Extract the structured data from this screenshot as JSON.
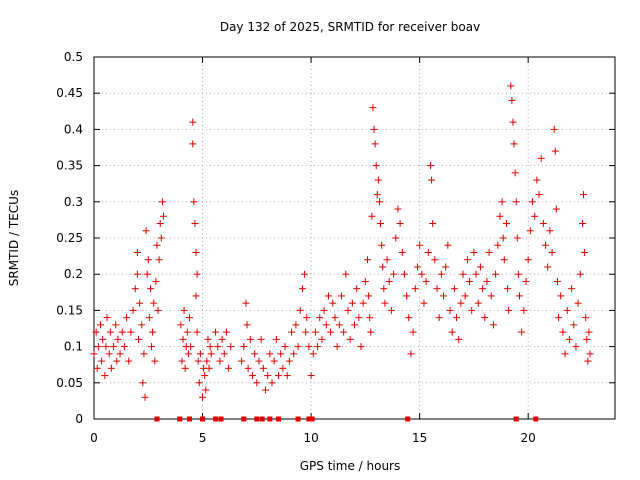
{
  "chart_data": {
    "type": "scatter",
    "title": "Day 132 of 2025, SRMTID for receiver boav",
    "xlabel": "GPS time / hours",
    "ylabel": "SRMTID / TECUs",
    "xlim": [
      0,
      24
    ],
    "ylim": [
      0,
      0.5
    ],
    "xticks": [
      0,
      5,
      10,
      15,
      20
    ],
    "yticks": [
      0,
      0.05,
      0.1,
      0.15,
      0.2,
      0.25,
      0.3,
      0.35,
      0.4,
      0.45,
      0.5
    ],
    "xtick_labels": [
      "0",
      "5",
      "10",
      "15",
      "20"
    ],
    "ytick_labels": [
      "0",
      "0.05",
      "0.1",
      "0.15",
      "0.2",
      "0.25",
      "0.3",
      "0.35",
      "0.4",
      "0.45",
      "0.5"
    ],
    "grid": true,
    "marker": "+",
    "color": "#e00000",
    "series": [
      {
        "name": "SRMTID",
        "points": [
          [
            0.0,
            0.09
          ],
          [
            0.1,
            0.12
          ],
          [
            0.15,
            0.07
          ],
          [
            0.2,
            0.1
          ],
          [
            0.3,
            0.13
          ],
          [
            0.35,
            0.08
          ],
          [
            0.4,
            0.11
          ],
          [
            0.5,
            0.06
          ],
          [
            0.55,
            0.1
          ],
          [
            0.6,
            0.14
          ],
          [
            0.7,
            0.09
          ],
          [
            0.75,
            0.12
          ],
          [
            0.8,
            0.07
          ],
          [
            0.9,
            0.1
          ],
          [
            1.0,
            0.13
          ],
          [
            1.05,
            0.08
          ],
          [
            1.1,
            0.11
          ],
          [
            1.2,
            0.09
          ],
          [
            1.3,
            0.12
          ],
          [
            1.4,
            0.1
          ],
          [
            1.5,
            0.14
          ],
          [
            1.6,
            0.08
          ],
          [
            1.7,
            0.12
          ],
          [
            1.8,
            0.15
          ],
          [
            1.9,
            0.18
          ],
          [
            2.0,
            0.2
          ],
          [
            2.0,
            0.23
          ],
          [
            2.05,
            0.11
          ],
          [
            2.1,
            0.16
          ],
          [
            2.2,
            0.13
          ],
          [
            2.25,
            0.05
          ],
          [
            2.3,
            0.09
          ],
          [
            2.35,
            0.03
          ],
          [
            2.4,
            0.26
          ],
          [
            2.45,
            0.2
          ],
          [
            2.5,
            0.22
          ],
          [
            2.55,
            0.14
          ],
          [
            2.6,
            0.18
          ],
          [
            2.65,
            0.1
          ],
          [
            2.7,
            0.12
          ],
          [
            2.75,
            0.16
          ],
          [
            2.8,
            0.08
          ],
          [
            2.85,
            0.19
          ],
          [
            2.9,
            0.24
          ],
          [
            2.95,
            0.15
          ],
          [
            3.0,
            0.22
          ],
          [
            3.05,
            0.27
          ],
          [
            3.1,
            0.25
          ],
          [
            3.15,
            0.3
          ],
          [
            3.2,
            0.28
          ],
          [
            4.0,
            0.13
          ],
          [
            4.05,
            0.08
          ],
          [
            4.1,
            0.11
          ],
          [
            4.15,
            0.15
          ],
          [
            4.2,
            0.07
          ],
          [
            4.25,
            0.1
          ],
          [
            4.3,
            0.12
          ],
          [
            4.35,
            0.09
          ],
          [
            4.4,
            0.14
          ],
          [
            4.45,
            0.1
          ],
          [
            4.55,
            0.41
          ],
          [
            4.55,
            0.38
          ],
          [
            4.6,
            0.3
          ],
          [
            4.65,
            0.27
          ],
          [
            4.7,
            0.23
          ],
          [
            4.75,
            0.2
          ],
          [
            4.7,
            0.17
          ],
          [
            4.75,
            0.12
          ],
          [
            4.8,
            0.08
          ],
          [
            4.85,
            0.05
          ],
          [
            4.9,
            0.09
          ],
          [
            5.0,
            0.03
          ],
          [
            5.05,
            0.07
          ],
          [
            5.1,
            0.06
          ],
          [
            5.15,
            0.04
          ],
          [
            5.2,
            0.08
          ],
          [
            5.25,
            0.11
          ],
          [
            5.3,
            0.07
          ],
          [
            5.35,
            0.1
          ],
          [
            5.4,
            0.09
          ],
          [
            5.6,
            0.12
          ],
          [
            5.7,
            0.1
          ],
          [
            5.8,
            0.08
          ],
          [
            5.9,
            0.11
          ],
          [
            6.0,
            0.09
          ],
          [
            6.1,
            0.12
          ],
          [
            6.2,
            0.07
          ],
          [
            6.3,
            0.1
          ],
          [
            6.8,
            0.08
          ],
          [
            6.9,
            0.1
          ],
          [
            7.0,
            0.16
          ],
          [
            7.05,
            0.13
          ],
          [
            7.1,
            0.07
          ],
          [
            7.2,
            0.11
          ],
          [
            7.3,
            0.06
          ],
          [
            7.4,
            0.09
          ],
          [
            7.5,
            0.05
          ],
          [
            7.6,
            0.08
          ],
          [
            7.7,
            0.11
          ],
          [
            7.8,
            0.07
          ],
          [
            7.9,
            0.04
          ],
          [
            8.0,
            0.06
          ],
          [
            8.1,
            0.09
          ],
          [
            8.2,
            0.05
          ],
          [
            8.3,
            0.08
          ],
          [
            8.4,
            0.11
          ],
          [
            8.5,
            0.06
          ],
          [
            8.6,
            0.09
          ],
          [
            8.7,
            0.07
          ],
          [
            8.8,
            0.1
          ],
          [
            8.9,
            0.06
          ],
          [
            9.0,
            0.08
          ],
          [
            9.1,
            0.12
          ],
          [
            9.2,
            0.09
          ],
          [
            9.3,
            0.13
          ],
          [
            9.4,
            0.1
          ],
          [
            9.5,
            0.15
          ],
          [
            9.6,
            0.18
          ],
          [
            9.7,
            0.2
          ],
          [
            9.75,
            0.12
          ],
          [
            9.8,
            0.14
          ],
          [
            9.9,
            0.1
          ],
          [
            10.0,
            0.06
          ],
          [
            10.1,
            0.09
          ],
          [
            10.2,
            0.12
          ],
          [
            10.3,
            0.1
          ],
          [
            10.4,
            0.14
          ],
          [
            10.5,
            0.11
          ],
          [
            10.6,
            0.15
          ],
          [
            10.7,
            0.13
          ],
          [
            10.8,
            0.17
          ],
          [
            10.9,
            0.12
          ],
          [
            11.0,
            0.16
          ],
          [
            11.1,
            0.14
          ],
          [
            11.2,
            0.1
          ],
          [
            11.3,
            0.13
          ],
          [
            11.4,
            0.17
          ],
          [
            11.5,
            0.12
          ],
          [
            11.6,
            0.2
          ],
          [
            11.7,
            0.15
          ],
          [
            11.8,
            0.11
          ],
          [
            11.9,
            0.16
          ],
          [
            12.0,
            0.13
          ],
          [
            12.1,
            0.18
          ],
          [
            12.2,
            0.14
          ],
          [
            12.3,
            0.1
          ],
          [
            12.4,
            0.16
          ],
          [
            12.5,
            0.19
          ],
          [
            12.6,
            0.22
          ],
          [
            12.65,
            0.17
          ],
          [
            12.7,
            0.14
          ],
          [
            12.75,
            0.12
          ],
          [
            12.8,
            0.28
          ],
          [
            12.85,
            0.43
          ],
          [
            12.9,
            0.4
          ],
          [
            12.95,
            0.38
          ],
          [
            13.0,
            0.35
          ],
          [
            13.05,
            0.31
          ],
          [
            13.1,
            0.33
          ],
          [
            13.15,
            0.3
          ],
          [
            13.2,
            0.27
          ],
          [
            13.25,
            0.24
          ],
          [
            13.3,
            0.21
          ],
          [
            13.35,
            0.18
          ],
          [
            13.4,
            0.16
          ],
          [
            13.5,
            0.22
          ],
          [
            13.6,
            0.19
          ],
          [
            13.7,
            0.15
          ],
          [
            13.8,
            0.2
          ],
          [
            13.9,
            0.25
          ],
          [
            14.0,
            0.29
          ],
          [
            14.1,
            0.27
          ],
          [
            14.2,
            0.23
          ],
          [
            14.3,
            0.2
          ],
          [
            14.4,
            0.17
          ],
          [
            14.5,
            0.14
          ],
          [
            14.6,
            0.09
          ],
          [
            14.7,
            0.12
          ],
          [
            14.8,
            0.18
          ],
          [
            14.9,
            0.21
          ],
          [
            15.0,
            0.24
          ],
          [
            15.1,
            0.2
          ],
          [
            15.2,
            0.16
          ],
          [
            15.3,
            0.19
          ],
          [
            15.4,
            0.23
          ],
          [
            15.5,
            0.35
          ],
          [
            15.55,
            0.33
          ],
          [
            15.6,
            0.27
          ],
          [
            15.7,
            0.22
          ],
          [
            15.8,
            0.18
          ],
          [
            15.9,
            0.14
          ],
          [
            16.0,
            0.2
          ],
          [
            16.1,
            0.17
          ],
          [
            16.2,
            0.21
          ],
          [
            16.3,
            0.24
          ],
          [
            16.4,
            0.15
          ],
          [
            16.5,
            0.12
          ],
          [
            16.6,
            0.18
          ],
          [
            16.7,
            0.14
          ],
          [
            16.8,
            0.11
          ],
          [
            16.9,
            0.16
          ],
          [
            17.0,
            0.2
          ],
          [
            17.1,
            0.17
          ],
          [
            17.2,
            0.22
          ],
          [
            17.3,
            0.19
          ],
          [
            17.4,
            0.15
          ],
          [
            17.5,
            0.23
          ],
          [
            17.6,
            0.2
          ],
          [
            17.7,
            0.16
          ],
          [
            17.8,
            0.21
          ],
          [
            17.9,
            0.18
          ],
          [
            18.0,
            0.14
          ],
          [
            18.1,
            0.19
          ],
          [
            18.2,
            0.23
          ],
          [
            18.3,
            0.17
          ],
          [
            18.4,
            0.13
          ],
          [
            18.5,
            0.2
          ],
          [
            18.6,
            0.24
          ],
          [
            18.7,
            0.28
          ],
          [
            18.8,
            0.3
          ],
          [
            18.85,
            0.25
          ],
          [
            18.9,
            0.22
          ],
          [
            19.0,
            0.27
          ],
          [
            19.05,
            0.18
          ],
          [
            19.1,
            0.15
          ],
          [
            19.2,
            0.46
          ],
          [
            19.25,
            0.44
          ],
          [
            19.3,
            0.41
          ],
          [
            19.35,
            0.38
          ],
          [
            19.4,
            0.34
          ],
          [
            19.45,
            0.3
          ],
          [
            19.5,
            0.25
          ],
          [
            19.55,
            0.2
          ],
          [
            19.6,
            0.17
          ],
          [
            19.7,
            0.12
          ],
          [
            19.8,
            0.15
          ],
          [
            19.9,
            0.19
          ],
          [
            20.0,
            0.22
          ],
          [
            20.1,
            0.26
          ],
          [
            20.2,
            0.3
          ],
          [
            20.3,
            0.28
          ],
          [
            20.4,
            0.33
          ],
          [
            20.5,
            0.31
          ],
          [
            20.6,
            0.36
          ],
          [
            20.7,
            0.27
          ],
          [
            20.8,
            0.24
          ],
          [
            20.9,
            0.21
          ],
          [
            21.0,
            0.26
          ],
          [
            21.1,
            0.23
          ],
          [
            21.2,
            0.4
          ],
          [
            21.25,
            0.37
          ],
          [
            21.3,
            0.29
          ],
          [
            21.35,
            0.19
          ],
          [
            21.4,
            0.14
          ],
          [
            21.5,
            0.17
          ],
          [
            21.6,
            0.12
          ],
          [
            21.7,
            0.09
          ],
          [
            21.8,
            0.15
          ],
          [
            21.9,
            0.11
          ],
          [
            22.0,
            0.18
          ],
          [
            22.1,
            0.13
          ],
          [
            22.2,
            0.1
          ],
          [
            22.3,
            0.16
          ],
          [
            22.4,
            0.2
          ],
          [
            22.5,
            0.27
          ],
          [
            22.55,
            0.31
          ],
          [
            22.6,
            0.23
          ],
          [
            22.65,
            0.14
          ],
          [
            22.7,
            0.11
          ],
          [
            22.75,
            0.08
          ],
          [
            22.8,
            0.12
          ],
          [
            22.85,
            0.09
          ]
        ]
      }
    ],
    "zero_points": [
      2.9,
      3.95,
      4.4,
      5.0,
      5.6,
      5.85,
      6.9,
      7.5,
      7.75,
      8.1,
      8.5,
      9.4,
      9.9,
      10.05,
      14.45,
      19.45,
      20.35
    ]
  }
}
